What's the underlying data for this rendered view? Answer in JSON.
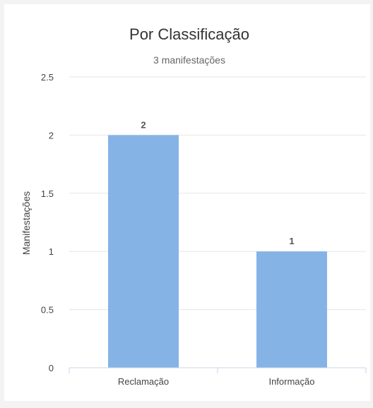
{
  "chart_data": {
    "type": "bar",
    "title": "Por Classificação",
    "subtitle": "3 manifestações",
    "xlabel": "",
    "ylabel": "Manifestações",
    "categories": [
      "Reclamação",
      "Informação"
    ],
    "values": [
      2,
      1
    ],
    "ylim": [
      0,
      2.5
    ],
    "yticks": [
      0,
      0.5,
      1,
      1.5,
      2,
      2.5
    ],
    "ytick_labels": [
      "0",
      "0.5",
      "1",
      "1.5",
      "2",
      "2.5"
    ],
    "data_labels": [
      "2",
      "1"
    ],
    "grid": true,
    "bar_color": "#86b3e6",
    "grid_color": "#e6e6e6",
    "axis_color": "#c8d4e4"
  }
}
